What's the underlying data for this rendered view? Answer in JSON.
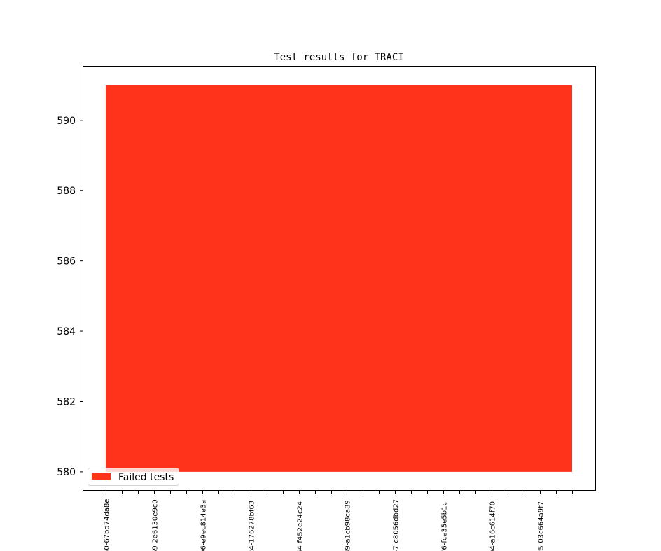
{
  "chart_data": {
    "type": "area",
    "title": "Test results for TRACI",
    "xlabel": "",
    "ylabel": "",
    "tick_count": 30,
    "label_every": 3,
    "x_tick_labels": [
      "50-67bd74da8e",
      "69-2e6130e9c0",
      "06-e9ec814e3a",
      "24-176278bf63",
      "64-f452e24c24",
      "89-a1cb98ca89",
      "47-c8056dbd27",
      "76-fce35e5b1c",
      "04-a16c614f70",
      "25-03c664a9f7"
    ],
    "ylim": [
      579.48,
      591.53
    ],
    "y_ticks": [
      580,
      582,
      584,
      586,
      588,
      590
    ],
    "grid": false,
    "legend_placement": "lower-left",
    "series": [
      {
        "name": "Failed tests",
        "color": "#ff331c",
        "baseline": 580,
        "values": [
          591,
          591,
          591,
          591,
          591,
          591,
          591,
          591,
          591,
          591,
          591,
          591,
          591,
          591,
          591,
          591,
          591,
          591,
          591,
          591,
          591,
          591,
          591,
          591,
          591,
          591,
          591,
          591,
          591,
          591
        ]
      }
    ]
  }
}
